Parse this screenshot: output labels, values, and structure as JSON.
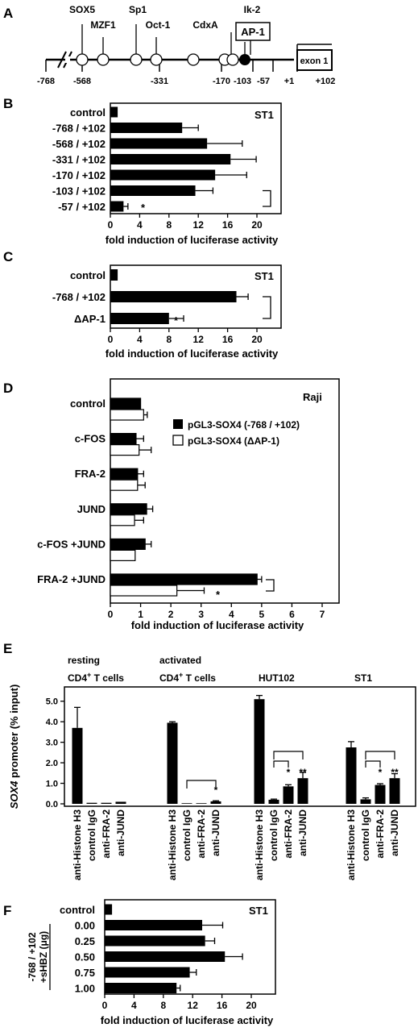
{
  "panels": {
    "A": {
      "letter": "A",
      "factors": [
        "SOX5",
        "MZF1",
        "Sp1",
        "Oct-1",
        "CdxA",
        "Ik-2"
      ],
      "ap1_label": "AP-1",
      "exon_label": "exon 1",
      "positions": [
        "-768",
        "-568",
        "-331",
        "-170",
        "-103",
        "-57",
        "+1",
        "+102"
      ]
    },
    "B": {
      "letter": "B",
      "cell": "ST1",
      "xlabel": "fold induction of luciferase activity",
      "star": "*"
    },
    "C": {
      "letter": "C",
      "cell": "ST1",
      "xlabel": "fold induction of luciferase activity",
      "star": "*"
    },
    "D": {
      "letter": "D",
      "cell": "Raji",
      "xlabel": "fold induction of luciferase activity",
      "legend": [
        "pGL3-SOX4 (-768 / +102)",
        "pGL3-SOX4 (ΔAP-1)"
      ],
      "star": "*"
    },
    "E": {
      "letter": "E",
      "ylabel_italic": "SOX4",
      "ylabel_rest": " promoter (% input)",
      "groups": [
        {
          "line1": "resting",
          "line2a": "CD4",
          "sup": "+",
          "line2b": " T cells"
        },
        {
          "line1": "activated",
          "line2a": "CD4",
          "sup": "+",
          "line2b": " T cells"
        },
        {
          "line1": "",
          "line2a": "HUT102",
          "sup": "",
          "line2b": ""
        },
        {
          "line1": "",
          "line2a": "ST1",
          "sup": "",
          "line2b": ""
        }
      ],
      "bar_labels": [
        "anti-Histone H3",
        "control IgG",
        "anti-FRA-2",
        "anti-JUND"
      ],
      "star": "*",
      "dstar": "**"
    },
    "F": {
      "letter": "F",
      "cell": "ST1",
      "side_label": "-768 / +102",
      "side_label2": "+sHBZ (μg)",
      "xlabel": "fold induction of luciferase activity"
    }
  },
  "chart_data": [
    {
      "type": "bar",
      "orientation": "horizontal",
      "title": "ST1",
      "categories": [
        "control",
        "-768 / +102",
        "-568 / +102",
        "-331 / +102",
        "-170 / +102",
        "-103 / +102",
        "-57 / +102"
      ],
      "values": [
        1.0,
        9.8,
        13.2,
        16.4,
        14.3,
        11.6,
        1.8
      ],
      "errors": [
        0,
        2.2,
        4.8,
        3.5,
        4.3,
        2.4,
        0.6
      ],
      "xlabel": "fold induction of luciferase activity",
      "xlim": [
        0,
        20
      ],
      "xticks": [
        0,
        4,
        8,
        12,
        16,
        20
      ]
    },
    {
      "type": "bar",
      "orientation": "horizontal",
      "title": "ST1",
      "categories": [
        "control",
        "-768 / +102",
        "ΔAP-1"
      ],
      "values": [
        1.0,
        17.2,
        8.0
      ],
      "errors": [
        0,
        1.6,
        2.0
      ],
      "xlabel": "fold induction of luciferase activity",
      "xlim": [
        0,
        20
      ],
      "xticks": [
        0,
        4,
        8,
        12,
        16,
        20
      ]
    },
    {
      "type": "bar",
      "orientation": "horizontal",
      "title": "Raji",
      "categories": [
        "control",
        "c-FOS",
        "FRA-2",
        "JUND",
        "c-FOS +JUND",
        "FRA-2 +JUND"
      ],
      "series": [
        {
          "name": "pGL3-SOX4 (-768 / +102)",
          "values": [
            1.0,
            0.85,
            0.9,
            1.2,
            1.15,
            4.85
          ],
          "errors": [
            0,
            0.25,
            0.2,
            0.2,
            0.2,
            0.15
          ],
          "color": "#000000"
        },
        {
          "name": "pGL3-SOX4 (ΔAP-1)",
          "values": [
            1.1,
            0.95,
            0.9,
            0.8,
            0.82,
            2.2
          ],
          "errors": [
            0.12,
            0.4,
            0.25,
            0.3,
            0,
            0.9
          ],
          "color": "#ffffff"
        }
      ],
      "xlabel": "fold induction of luciferase activity",
      "xlim": [
        0,
        7
      ],
      "xticks": [
        0,
        1,
        2,
        3,
        4,
        5,
        6,
        7
      ],
      "legend": "top-right"
    },
    {
      "type": "bar",
      "orientation": "vertical",
      "categories": [
        "anti-Histone H3",
        "control IgG",
        "anti-FRA-2",
        "anti-JUND"
      ],
      "groups": [
        "resting CD4+ T cells",
        "activated CD4+ T cells",
        "HUT102",
        "ST1"
      ],
      "values": [
        [
          3.7,
          0.05,
          0.05,
          0.1
        ],
        [
          3.95,
          0.03,
          0.03,
          0.12
        ],
        [
          5.1,
          0.2,
          0.85,
          1.25
        ],
        [
          2.75,
          0.22,
          0.92,
          1.25
        ]
      ],
      "errors": [
        [
          1.0,
          0,
          0,
          0
        ],
        [
          0.05,
          0,
          0,
          0.03
        ],
        [
          0.18,
          0.03,
          0.08,
          0.28
        ],
        [
          0.28,
          0.07,
          0.06,
          0.22
        ]
      ],
      "ylabel": "SOX4 promoter (% input)",
      "ylim": [
        0,
        5.5
      ],
      "yticks": [
        0.0,
        1.0,
        2.0,
        3.0,
        4.0,
        5.0
      ]
    },
    {
      "type": "bar",
      "orientation": "horizontal",
      "title": "ST1",
      "categories": [
        "control",
        "0.00",
        "0.25",
        "0.50",
        "0.75",
        "1.00"
      ],
      "values": [
        1.0,
        13.3,
        13.7,
        16.4,
        11.6,
        9.8
      ],
      "errors": [
        0,
        2.8,
        1.3,
        2.4,
        0.9,
        0.5
      ],
      "xlabel": "fold induction of luciferase activity",
      "xlim": [
        0,
        20
      ],
      "xticks": [
        0,
        4,
        8,
        12,
        16,
        20
      ]
    }
  ]
}
